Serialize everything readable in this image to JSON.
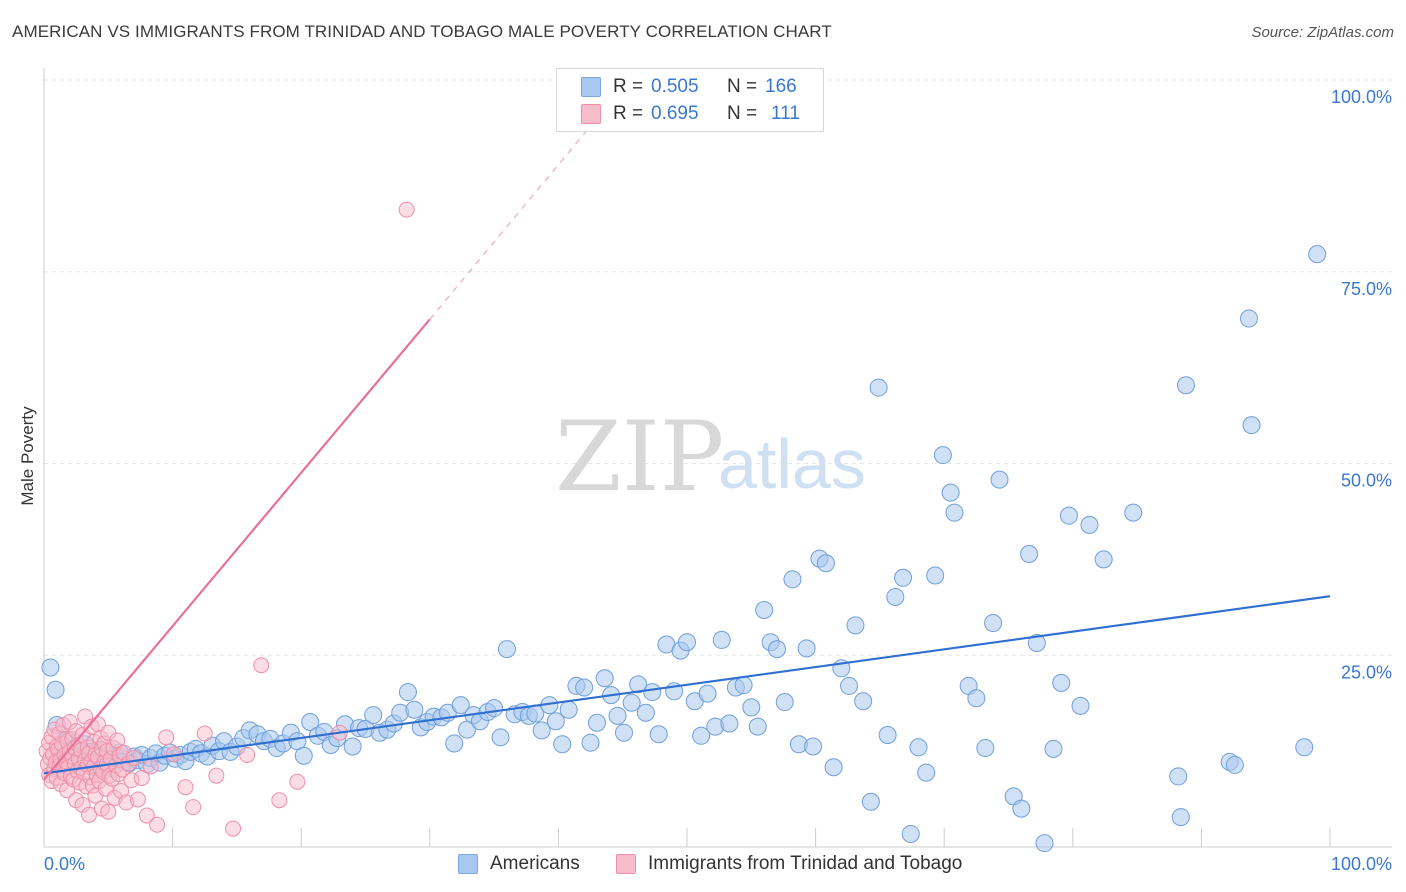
{
  "header": {
    "title": "AMERICAN VS IMMIGRANTS FROM TRINIDAD AND TOBAGO MALE POVERTY CORRELATION CHART",
    "source": "Source: ZipAtlas.com"
  },
  "watermark": {
    "zip": "ZIP",
    "atlas": "atlas"
  },
  "stats": {
    "rows": [
      {
        "r_label": "R = ",
        "r_value": "0.505",
        "n_label": "N = ",
        "n_value": "166",
        "color": "#a9c8ef",
        "border": "#7aa7e0"
      },
      {
        "r_label": "R = ",
        "r_value": "0.695",
        "n_label": "N = ",
        "n_value": "111",
        "color": "#f7bccb",
        "border": "#ee8fa9"
      }
    ]
  },
  "colors": {
    "blue_fill": "#a9c8ef",
    "blue_stroke": "#6f9fdc",
    "blue_line": "#2f6fd0",
    "pink_fill": "#f7bccb",
    "pink_stroke": "#ee8fa9",
    "pink_line": "#e8709a",
    "grid": "#e6e6e6",
    "axis_text": "#3a78d0"
  },
  "chart_data": {
    "type": "scatter",
    "title": "AMERICAN VS IMMIGRANTS FROM TRINIDAD AND TOBAGO MALE POVERTY CORRELATION CHART",
    "xlabel": "",
    "ylabel": "Male Poverty",
    "xlim": [
      0,
      100
    ],
    "ylim": [
      0,
      100
    ],
    "x_tick_labels": [
      "0.0%",
      "100.0%"
    ],
    "y_ticks": [
      25,
      50,
      75,
      100
    ],
    "y_tick_labels": [
      "25.0%",
      "50.0%",
      "75.0%",
      "100.0%"
    ],
    "grid": true,
    "legend_position": "bottom",
    "series": [
      {
        "name": "Americans",
        "color": "#a9c8ef",
        "trend": {
          "x": [
            0,
            100
          ],
          "y": [
            9.6,
            32.7
          ],
          "style": "solid"
        },
        "points": [
          [
            0.5,
            23.4
          ],
          [
            0.9,
            20.5
          ],
          [
            1.0,
            15.9
          ],
          [
            1.2,
            12.0
          ],
          [
            1.4,
            11.5
          ],
          [
            1.6,
            13.1
          ],
          [
            1.8,
            14.0
          ],
          [
            2.0,
            12.6
          ],
          [
            2.2,
            11.2
          ],
          [
            2.4,
            12.9
          ],
          [
            2.6,
            10.7
          ],
          [
            2.8,
            11.6
          ],
          [
            3.0,
            12.2
          ],
          [
            3.2,
            13.4
          ],
          [
            3.4,
            11.0
          ],
          [
            3.6,
            12.4
          ],
          [
            3.8,
            10.4
          ],
          [
            4.0,
            11.9
          ],
          [
            4.3,
            12.7
          ],
          [
            4.5,
            10.8
          ],
          [
            4.8,
            11.4
          ],
          [
            5.0,
            12.1
          ],
          [
            5.3,
            10.2
          ],
          [
            5.6,
            11.7
          ],
          [
            5.9,
            12.3
          ],
          [
            6.2,
            11.1
          ],
          [
            6.6,
            10.9
          ],
          [
            7.0,
            11.8
          ],
          [
            7.3,
            11.3
          ],
          [
            7.6,
            12.0
          ],
          [
            8.0,
            10.8
          ],
          [
            8.3,
            11.6
          ],
          [
            8.7,
            12.2
          ],
          [
            9.0,
            11.0
          ],
          [
            9.4,
            11.9
          ],
          [
            9.8,
            12.3
          ],
          [
            10.2,
            11.5
          ],
          [
            10.6,
            12.0
          ],
          [
            11.0,
            11.2
          ],
          [
            11.4,
            12.4
          ],
          [
            11.8,
            12.8
          ],
          [
            12.2,
            12.2
          ],
          [
            12.7,
            11.8
          ],
          [
            13.1,
            13.2
          ],
          [
            13.6,
            12.5
          ],
          [
            14.0,
            13.8
          ],
          [
            14.5,
            12.4
          ],
          [
            15.0,
            13.1
          ],
          [
            15.5,
            14.2
          ],
          [
            16.0,
            15.2
          ],
          [
            16.6,
            14.7
          ],
          [
            17.1,
            13.8
          ],
          [
            17.6,
            14.1
          ],
          [
            18.1,
            12.9
          ],
          [
            18.6,
            13.5
          ],
          [
            19.2,
            14.9
          ],
          [
            19.7,
            13.8
          ],
          [
            20.2,
            11.9
          ],
          [
            20.7,
            16.3
          ],
          [
            21.3,
            14.5
          ],
          [
            21.8,
            15.0
          ],
          [
            22.3,
            13.3
          ],
          [
            22.8,
            14.2
          ],
          [
            23.4,
            16.0
          ],
          [
            24.0,
            13.1
          ],
          [
            24.5,
            15.5
          ],
          [
            25.0,
            15.4
          ],
          [
            25.6,
            17.2
          ],
          [
            26.1,
            14.9
          ],
          [
            26.7,
            15.3
          ],
          [
            27.2,
            16.1
          ],
          [
            27.7,
            17.5
          ],
          [
            28.3,
            20.2
          ],
          [
            28.8,
            17.9
          ],
          [
            29.3,
            15.6
          ],
          [
            29.8,
            16.3
          ],
          [
            30.3,
            17.0
          ],
          [
            30.9,
            16.9
          ],
          [
            31.4,
            17.5
          ],
          [
            31.9,
            13.5
          ],
          [
            32.4,
            18.5
          ],
          [
            32.9,
            15.3
          ],
          [
            33.4,
            17.2
          ],
          [
            33.9,
            16.4
          ],
          [
            34.5,
            17.6
          ],
          [
            35.0,
            18.1
          ],
          [
            35.5,
            14.3
          ],
          [
            36.0,
            25.8
          ],
          [
            36.6,
            17.3
          ],
          [
            37.2,
            17.6
          ],
          [
            37.7,
            17.1
          ],
          [
            38.2,
            17.4
          ],
          [
            38.7,
            15.2
          ],
          [
            39.3,
            18.5
          ],
          [
            39.8,
            16.4
          ],
          [
            40.3,
            13.4
          ],
          [
            40.8,
            17.9
          ],
          [
            41.4,
            21.0
          ],
          [
            42.0,
            20.8
          ],
          [
            42.5,
            13.6
          ],
          [
            43.0,
            16.2
          ],
          [
            43.6,
            22.0
          ],
          [
            44.1,
            19.8
          ],
          [
            44.6,
            17.1
          ],
          [
            45.1,
            14.9
          ],
          [
            45.7,
            18.8
          ],
          [
            46.2,
            21.2
          ],
          [
            46.8,
            17.5
          ],
          [
            47.3,
            20.2
          ],
          [
            47.8,
            14.7
          ],
          [
            48.4,
            26.4
          ],
          [
            49.0,
            20.3
          ],
          [
            49.5,
            25.6
          ],
          [
            50.0,
            26.7
          ],
          [
            50.6,
            19.0
          ],
          [
            51.1,
            14.5
          ],
          [
            51.6,
            20.0
          ],
          [
            52.2,
            15.7
          ],
          [
            52.7,
            27.0
          ],
          [
            53.3,
            16.1
          ],
          [
            53.8,
            20.8
          ],
          [
            54.4,
            21.1
          ],
          [
            55.0,
            18.2
          ],
          [
            55.5,
            15.7
          ],
          [
            56.0,
            30.9
          ],
          [
            56.5,
            26.7
          ],
          [
            57.0,
            25.8
          ],
          [
            57.6,
            18.9
          ],
          [
            58.2,
            34.9
          ],
          [
            58.7,
            13.4
          ],
          [
            59.3,
            25.9
          ],
          [
            59.8,
            13.1
          ],
          [
            60.3,
            37.6
          ],
          [
            60.8,
            37.0
          ],
          [
            61.4,
            10.4
          ],
          [
            62.0,
            23.3
          ],
          [
            62.6,
            21.0
          ],
          [
            63.1,
            28.9
          ],
          [
            63.7,
            19.0
          ],
          [
            64.3,
            5.9
          ],
          [
            64.9,
            59.9
          ],
          [
            65.6,
            14.6
          ],
          [
            66.2,
            32.6
          ],
          [
            66.8,
            35.1
          ],
          [
            67.4,
            1.7
          ],
          [
            68.0,
            13.0
          ],
          [
            68.6,
            9.7
          ],
          [
            69.3,
            35.4
          ],
          [
            69.9,
            51.1
          ],
          [
            70.5,
            46.2
          ],
          [
            70.8,
            43.6
          ],
          [
            71.9,
            21.0
          ],
          [
            72.5,
            19.4
          ],
          [
            73.2,
            12.9
          ],
          [
            73.8,
            29.2
          ],
          [
            74.3,
            47.9
          ],
          [
            75.4,
            6.6
          ],
          [
            76.0,
            5.0
          ],
          [
            76.6,
            38.2
          ],
          [
            77.2,
            26.6
          ],
          [
            77.8,
            0.5
          ],
          [
            78.5,
            12.8
          ],
          [
            79.1,
            21.4
          ],
          [
            79.7,
            43.2
          ],
          [
            80.6,
            18.4
          ],
          [
            81.3,
            42.0
          ],
          [
            82.4,
            37.5
          ],
          [
            84.7,
            43.6
          ],
          [
            88.2,
            9.2
          ],
          [
            88.4,
            3.9
          ],
          [
            88.8,
            60.2
          ],
          [
            92.2,
            11.1
          ],
          [
            92.6,
            10.7
          ],
          [
            93.7,
            68.9
          ],
          [
            93.9,
            55.0
          ],
          [
            98.0,
            13.0
          ],
          [
            99.0,
            77.3
          ]
        ]
      },
      {
        "name": "Immigrants from Trinidad and Tobago",
        "color": "#f7bccb",
        "trend": {
          "x": [
            0,
            30
          ],
          "y": [
            8.8,
            68.8
          ],
          "style": "solid",
          "extension": {
            "x": [
              30,
              43
            ],
            "y": [
              68.8,
              95.0
            ],
            "style": "dashed"
          }
        },
        "points": [
          [
            0.2,
            12.5
          ],
          [
            0.3,
            10.8
          ],
          [
            0.4,
            13.6
          ],
          [
            0.4,
            9.4
          ],
          [
            0.5,
            11.6
          ],
          [
            0.6,
            14.4
          ],
          [
            0.6,
            8.6
          ],
          [
            0.7,
            12.1
          ],
          [
            0.8,
            10.2
          ],
          [
            0.8,
            15.3
          ],
          [
            0.9,
            11.0
          ],
          [
            1.0,
            13.1
          ],
          [
            1.0,
            9.0
          ],
          [
            1.1,
            12.7
          ],
          [
            1.2,
            10.6
          ],
          [
            1.2,
            14.8
          ],
          [
            1.3,
            11.4
          ],
          [
            1.3,
            8.2
          ],
          [
            1.4,
            13.4
          ],
          [
            1.5,
            10.0
          ],
          [
            1.5,
            15.9
          ],
          [
            1.6,
            12.0
          ],
          [
            1.6,
            9.6
          ],
          [
            1.7,
            11.2
          ],
          [
            1.8,
            13.8
          ],
          [
            1.8,
            7.4
          ],
          [
            1.9,
            10.4
          ],
          [
            2.0,
            12.4
          ],
          [
            2.0,
            16.3
          ],
          [
            2.1,
            9.2
          ],
          [
            2.2,
            11.8
          ],
          [
            2.2,
            14.1
          ],
          [
            2.3,
            8.8
          ],
          [
            2.4,
            10.9
          ],
          [
            2.4,
            12.9
          ],
          [
            2.5,
            6.1
          ],
          [
            2.5,
            15.1
          ],
          [
            2.6,
            9.9
          ],
          [
            2.7,
            11.5
          ],
          [
            2.7,
            13.3
          ],
          [
            2.8,
            8.4
          ],
          [
            2.9,
            10.3
          ],
          [
            2.9,
            12.6
          ],
          [
            3.0,
            5.5
          ],
          [
            3.0,
            14.6
          ],
          [
            3.1,
            9.7
          ],
          [
            3.2,
            11.3
          ],
          [
            3.2,
            17.0
          ],
          [
            3.3,
            7.9
          ],
          [
            3.4,
            10.7
          ],
          [
            3.4,
            13.0
          ],
          [
            3.5,
            4.2
          ],
          [
            3.5,
            12.2
          ],
          [
            3.6,
            9.1
          ],
          [
            3.7,
            11.1
          ],
          [
            3.7,
            15.7
          ],
          [
            3.8,
            8.0
          ],
          [
            3.9,
            10.5
          ],
          [
            3.9,
            13.7
          ],
          [
            4.0,
            6.7
          ],
          [
            4.0,
            12.0
          ],
          [
            4.1,
            9.4
          ],
          [
            4.2,
            11.7
          ],
          [
            4.2,
            16.0
          ],
          [
            4.3,
            8.6
          ],
          [
            4.4,
            10.2
          ],
          [
            4.4,
            14.2
          ],
          [
            4.5,
            5.0
          ],
          [
            4.5,
            12.8
          ],
          [
            4.6,
            9.8
          ],
          [
            4.7,
            11.0
          ],
          [
            4.7,
            13.5
          ],
          [
            4.8,
            7.6
          ],
          [
            4.9,
            10.8
          ],
          [
            4.9,
            12.5
          ],
          [
            5.0,
            4.6
          ],
          [
            5.0,
            14.9
          ],
          [
            5.1,
            9.3
          ],
          [
            5.2,
            11.5
          ],
          [
            5.3,
            8.9
          ],
          [
            5.4,
            12.9
          ],
          [
            5.5,
            6.4
          ],
          [
            5.6,
            10.6
          ],
          [
            5.7,
            13.9
          ],
          [
            5.8,
            9.5
          ],
          [
            5.9,
            11.9
          ],
          [
            6.0,
            7.3
          ],
          [
            6.1,
            10.1
          ],
          [
            6.2,
            12.3
          ],
          [
            6.4,
            5.8
          ],
          [
            6.6,
            10.9
          ],
          [
            6.8,
            8.7
          ],
          [
            7.0,
            11.6
          ],
          [
            7.3,
            6.2
          ],
          [
            7.6,
            9.0
          ],
          [
            8.0,
            4.1
          ],
          [
            8.3,
            10.5
          ],
          [
            8.8,
            2.9
          ],
          [
            9.5,
            14.3
          ],
          [
            10.1,
            12.1
          ],
          [
            11.0,
            7.8
          ],
          [
            11.6,
            5.2
          ],
          [
            12.5,
            14.8
          ],
          [
            13.4,
            9.3
          ],
          [
            14.7,
            2.4
          ],
          [
            15.8,
            12.0
          ],
          [
            16.9,
            23.7
          ],
          [
            18.3,
            6.1
          ],
          [
            19.7,
            8.5
          ],
          [
            23.0,
            14.9
          ],
          [
            28.2,
            83.1
          ]
        ]
      }
    ]
  },
  "legend": {
    "items": [
      {
        "label": "Americans",
        "color": "#a9c8ef",
        "border": "#7aa7e0"
      },
      {
        "label": "Immigrants from Trinidad and Tobago",
        "color": "#f7bccb",
        "border": "#ee8fa9"
      }
    ]
  }
}
